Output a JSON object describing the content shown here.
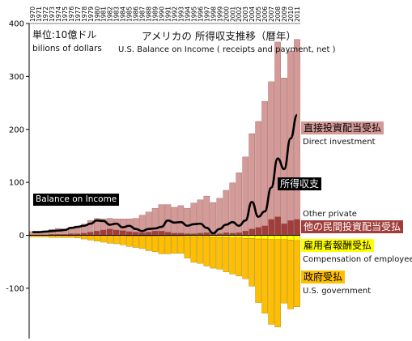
{
  "chart_data": {
    "type": "bar",
    "subtype": "stacked bars with line",
    "unit_label_jp": "単位:10億ドル",
    "unit_label_en": "bilions of dollars",
    "title_jp": "アメリカの 所得収支推移（暦年）",
    "title_en": "U.S. Balance on Income ( receipts and payment, net )",
    "ylim": [
      -195,
      400
    ],
    "yticks": [
      -100,
      0,
      100,
      200,
      300,
      400
    ],
    "categories": [
      "1970",
      "1971",
      "1972",
      "1973",
      "1974",
      "1975",
      "1976",
      "1977",
      "1978",
      "1979",
      "1980",
      "1981",
      "1982",
      "1983",
      "1984",
      "1985",
      "1986",
      "1987",
      "1988",
      "1989",
      "1990",
      "1991",
      "1992",
      "1993",
      "1994",
      "1995",
      "1996",
      "1997",
      "1998",
      "1999",
      "2000",
      "2001",
      "2002",
      "2003",
      "2004",
      "2005",
      "2006",
      "2007",
      "2008",
      "2009",
      "2010",
      "2011"
    ],
    "series": [
      {
        "name": "Direct investment",
        "label_jp": "直接投資配当受払",
        "color": "#d49a98",
        "values": [
          6,
          6,
          7,
          9,
          11,
          10,
          12,
          14,
          17,
          22,
          24,
          21,
          20,
          21,
          22,
          24,
          26,
          33,
          38,
          43,
          50,
          52,
          49,
          52,
          48,
          58,
          63,
          69,
          59,
          67,
          80,
          95,
          113,
          140,
          180,
          200,
          235,
          260,
          330,
          275,
          320,
          340
        ]
      },
      {
        "name": "Other private",
        "label_jp": "他の民間投資配当受払",
        "color": "#a13e3c",
        "values": [
          1,
          1,
          1,
          2,
          2,
          2,
          3,
          3,
          4,
          6,
          8,
          10,
          12,
          10,
          9,
          7,
          6,
          5,
          6,
          8,
          8,
          6,
          4,
          4,
          3,
          3,
          4,
          5,
          3,
          3,
          5,
          4,
          5,
          8,
          12,
          15,
          18,
          30,
          35,
          22,
          28,
          30
        ]
      },
      {
        "name": "Compensation of employee",
        "label_jp": "雇用者報酬受払",
        "color": "#ffff00",
        "values": [
          0,
          0,
          0,
          0,
          0,
          0,
          0,
          0,
          0,
          0,
          0,
          0,
          0,
          0,
          0,
          -1,
          -1,
          -1,
          -1,
          -1,
          -2,
          -2,
          -2,
          -2,
          -3,
          -3,
          -3,
          -3,
          -4,
          -4,
          -4,
          -5,
          -5,
          -6,
          -6,
          -7,
          -7,
          -8,
          -8,
          -8,
          -9,
          -10
        ]
      },
      {
        "name": "U.S. government",
        "label_jp": "政府受払",
        "color": "#ffbf00",
        "values": [
          -3,
          -3,
          -3,
          -4,
          -4,
          -4,
          -4,
          -5,
          -7,
          -9,
          -11,
          -13,
          -15,
          -16,
          -18,
          -20,
          -22,
          -24,
          -28,
          -30,
          -33,
          -33,
          -32,
          -32,
          -40,
          -48,
          -50,
          -55,
          -58,
          -60,
          -65,
          -68,
          -72,
          -76,
          -90,
          -120,
          -140,
          -160,
          -165,
          -120,
          -130,
          -125
        ]
      }
    ],
    "line": {
      "name": "Balance on Income",
      "label_jp": "所得収支",
      "color": "#000000",
      "values": [
        6,
        6,
        7,
        8,
        9,
        10,
        14,
        16,
        18,
        22,
        28,
        27,
        20,
        22,
        15,
        18,
        12,
        8,
        12,
        13,
        16,
        28,
        24,
        25,
        18,
        21,
        22,
        14,
        4,
        12,
        20,
        25,
        18,
        28,
        63,
        35,
        45,
        90,
        145,
        125,
        183,
        227
      ]
    },
    "labels": {
      "direct_jp": "直接投資配当受払",
      "direct_en": "Direct investment",
      "balance_jp": "所得収支",
      "balance_en": "Balance on Income",
      "other_en": "Other private",
      "other_jp": "他の民間投資配当受払",
      "comp_jp": "雇用者報酬受払",
      "comp_en": "Compensation of employee",
      "gov_jp": "政府受払",
      "gov_en": "U.S. government"
    },
    "grid": false
  }
}
